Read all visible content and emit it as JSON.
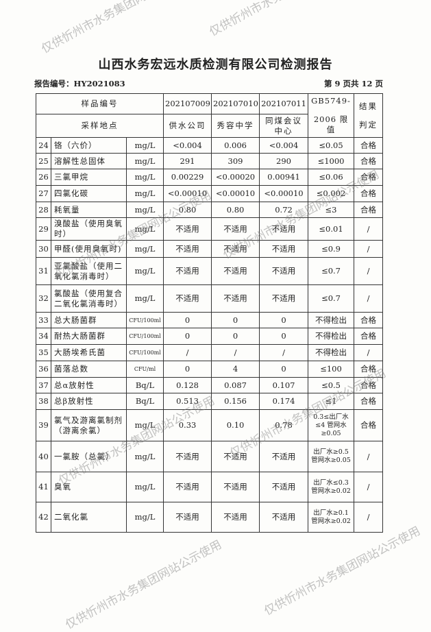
{
  "title": "山西水务宏远水质检测有限公司检测报告",
  "report_no": "报告编号：HY2021083",
  "page_info": "第 9 页共 12 页",
  "watermark": "仅供忻州市水务集团网站公示使用",
  "header": {
    "sample_no_label": "样品编号",
    "location_label": "采样地点",
    "samples": [
      "202107009",
      "202107010",
      "202107011"
    ],
    "locations": [
      "供水公司",
      "秀容中学",
      "同煤会议中心"
    ],
    "limit_label_1": "GB5749-",
    "limit_label_2": "2006 限值",
    "result_label_1": "结果",
    "result_label_2": "判定"
  },
  "rows": [
    {
      "no": "24",
      "item": "铬（六价）",
      "unit": "mg/L",
      "v": [
        "<0.004",
        "0.006",
        "<0.004"
      ],
      "limit": "≤0.05",
      "result": "合格"
    },
    {
      "no": "25",
      "item": "溶解性总固体",
      "unit": "mg/L",
      "v": [
        "291",
        "309",
        "290"
      ],
      "limit": "≤1000",
      "result": "合格"
    },
    {
      "no": "26",
      "item": "三氯甲烷",
      "unit": "mg/L",
      "v": [
        "0.00229",
        "<0.00020",
        "0.00941"
      ],
      "limit": "≤0.06",
      "result": "合格"
    },
    {
      "no": "27",
      "item": "四氯化碳",
      "unit": "mg/L",
      "v": [
        "<0.00010",
        "<0.00010",
        "<0.00010"
      ],
      "limit": "≤0.002",
      "result": "合格"
    },
    {
      "no": "28",
      "item": "耗氧量",
      "unit": "mg/L",
      "v": [
        "0.80",
        "0.80",
        "0.72"
      ],
      "limit": "≤3",
      "result": "合格"
    },
    {
      "no": "29",
      "item": "溴酸盐（使用臭氧时）",
      "unit": "mg/L",
      "v": [
        "不适用",
        "不适用",
        "不适用"
      ],
      "limit": "≤0.01",
      "result": "/"
    },
    {
      "no": "30",
      "item": "甲醛(使用臭氧时)",
      "unit": "mg/L",
      "v": [
        "不适用",
        "不适用",
        "不适用"
      ],
      "limit": "≤0.9",
      "result": "/"
    },
    {
      "no": "31",
      "item": "亚氯酸盐（使用二氧化氯消毒时）",
      "unit": "mg/L",
      "v": [
        "不适用",
        "不适用",
        "不适用"
      ],
      "limit": "≤0.7",
      "result": "/"
    },
    {
      "no": "32",
      "item": "氯酸盐（使用复合二氧化氯消毒时）",
      "unit": "mg/L",
      "v": [
        "不适用",
        "不适用",
        "不适用"
      ],
      "limit": "≤0.7",
      "result": "/"
    },
    {
      "no": "33",
      "item": "总大肠菌群",
      "unit": "CFU/100ml",
      "v": [
        "0",
        "0",
        "0"
      ],
      "limit": "不得检出",
      "result": "合格"
    },
    {
      "no": "34",
      "item": "耐热大肠菌群",
      "unit": "CFU/100ml",
      "v": [
        "0",
        "0",
        "0"
      ],
      "limit": "不得检出",
      "result": "合格"
    },
    {
      "no": "35",
      "item": "大肠埃希氏菌",
      "unit": "CFU/100ml",
      "v": [
        "/",
        "/",
        "/"
      ],
      "limit": "不得检出",
      "result": "/"
    },
    {
      "no": "36",
      "item": "菌落总数",
      "unit": "CFU/ml",
      "v": [
        "0",
        "4",
        "0"
      ],
      "limit": "≤100",
      "result": "合格"
    },
    {
      "no": "37",
      "item": "总α放射性",
      "unit": "Bq/L",
      "v": [
        "0.128",
        "0.087",
        "0.107"
      ],
      "limit": "≤0.5",
      "result": "合格"
    },
    {
      "no": "38",
      "item": "总β放射性",
      "unit": "Bq/L",
      "v": [
        "0.513",
        "0.156",
        "0.174"
      ],
      "limit": "≤1",
      "result": "合格"
    },
    {
      "no": "39",
      "item": "氯气及游离氯制剂（游离余氯）",
      "unit": "mg/L",
      "v": [
        "0.33",
        "0.10",
        "0.78"
      ],
      "limit": "0.3≤出厂水≤4 管网水≥0.05",
      "result": "合格"
    },
    {
      "no": "40",
      "item": "一氯胺（总氯）",
      "unit": "mg/L",
      "v": [
        "不适用",
        "不适用",
        "不适用"
      ],
      "limit": "出厂水≥0.5 管网水≥0.05",
      "result": "/"
    },
    {
      "no": "41",
      "item": "臭氧",
      "unit": "mg/L",
      "v": [
        "不适用",
        "不适用",
        "不适用"
      ],
      "limit": "出厂水≤0.3 管网水≥0.02",
      "result": "/"
    },
    {
      "no": "42",
      "item": "二氧化氯",
      "unit": "mg/L",
      "v": [
        "不适用",
        "不适用",
        "不适用"
      ],
      "limit": "出厂水≥0.1 管网水≥0.02",
      "result": "/"
    }
  ]
}
